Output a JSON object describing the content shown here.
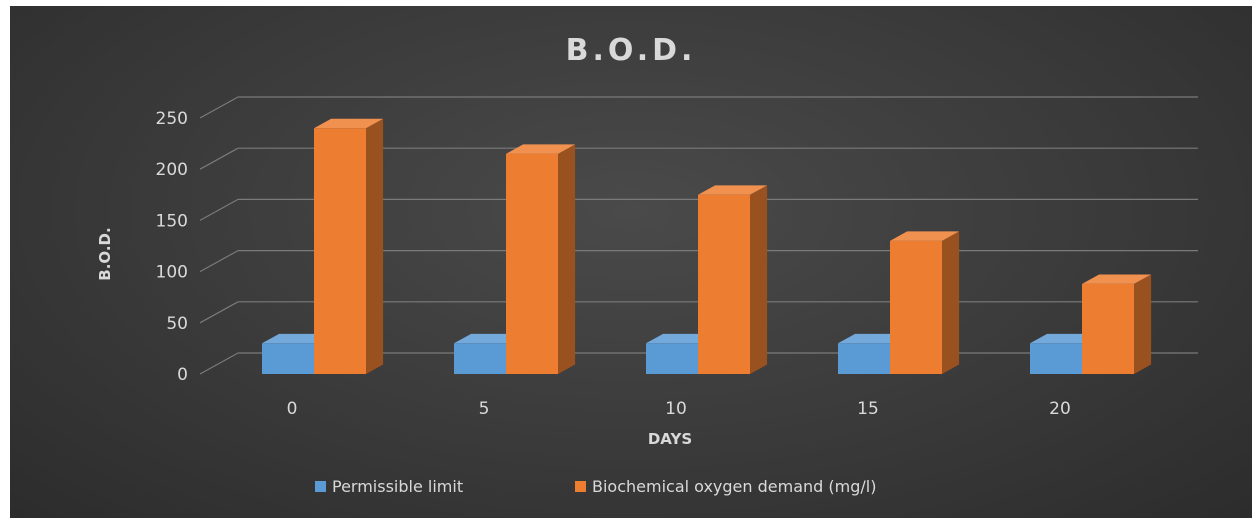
{
  "chart_data": {
    "type": "bar",
    "title": "B.O.D.",
    "xlabel": "DAYS",
    "ylabel": "B.O.D.",
    "categories": [
      "0",
      "5",
      "10",
      "15",
      "20"
    ],
    "series": [
      {
        "name": "Permissible limit",
        "values": [
          30,
          30,
          30,
          30,
          30
        ],
        "color": "#5b9bd5"
      },
      {
        "name": "Biochemical oxygen demand (mg/l)",
        "values": [
          240,
          215,
          175,
          130,
          88
        ],
        "color": "#ed7d31"
      }
    ],
    "yticks": [
      "0",
      "50",
      "100",
      "150",
      "200",
      "250"
    ],
    "ylim": [
      0,
      250
    ],
    "grid": true,
    "legend_position": "bottom",
    "style": "3d-column",
    "background": "#3a3a3a"
  }
}
